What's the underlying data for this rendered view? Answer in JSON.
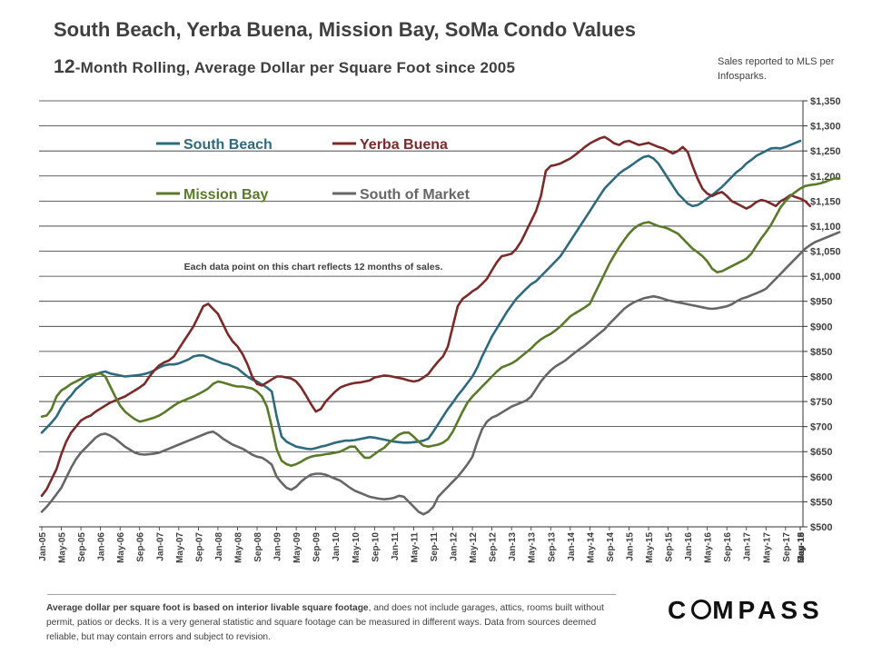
{
  "chart_data": {
    "type": "line",
    "title": "South Beach, Yerba Buena, Mission Bay, SoMa Condo Values",
    "subtitle_prefix": "12",
    "subtitle_rest": "-Month  Rolling,  Average Dollar per Square Foot since 2005",
    "source_note": "Sales reported to MLS per Infosparks.",
    "annotation": "Each data point on this chart reflects 12 months of sales.",
    "ylim": [
      500,
      1350
    ],
    "ytick_step": 50,
    "y_tick_labels": [
      "$500",
      "$550",
      "$600",
      "$650",
      "$700",
      "$750",
      "$800",
      "$850",
      "$900",
      "$950",
      "$1,000",
      "$1,050",
      "$1,100",
      "$1,150",
      "$1,200",
      "$1,250",
      "$1,300",
      "$1,350"
    ],
    "x_tick_labels": [
      "Jan-05",
      "May-05",
      "Sep-05",
      "Jan-06",
      "May-06",
      "Sep-06",
      "Jan-07",
      "May-07",
      "Sep-07",
      "Jan-08",
      "May-08",
      "Sep-08",
      "Jan-09",
      "May-09",
      "Sep-09",
      "Jan-10",
      "May-10",
      "Sep-10",
      "Jan-11",
      "May-11",
      "Sep-11",
      "Jan-12",
      "May-12",
      "Sep-12",
      "Jan-13",
      "May-13",
      "Sep-13",
      "Jan-14",
      "May-14",
      "Sep-14",
      "Jan-15",
      "May-15",
      "Sep-15",
      "Jan-16",
      "May-16",
      "Sep-16",
      "Jan-17",
      "May-17",
      "Sep-17",
      "Jan-18",
      "May-18",
      "Sep-18",
      "Jan-19",
      "May-19"
    ],
    "x_points_per_tick": 4,
    "legend_position": "top-left",
    "series": [
      {
        "name": "South Beach",
        "color": "#2e6a7e",
        "values": [
          688,
          698,
          708,
          720,
          738,
          752,
          762,
          775,
          783,
          792,
          798,
          804,
          808,
          810,
          806,
          804,
          802,
          800,
          801,
          802,
          803,
          805,
          808,
          812,
          818,
          822,
          824,
          824,
          826,
          830,
          834,
          840,
          842,
          842,
          838,
          834,
          830,
          826,
          824,
          820,
          816,
          808,
          800,
          794,
          790,
          784,
          778,
          770,
          720,
          680,
          670,
          665,
          660,
          658,
          656,
          655,
          657,
          660,
          662,
          665,
          668,
          670,
          672,
          672,
          673,
          675,
          677,
          679,
          678,
          676,
          674,
          672,
          670,
          669,
          668,
          668,
          669,
          670,
          672,
          676,
          690,
          705,
          720,
          735,
          748,
          762,
          774,
          787,
          800,
          818,
          840,
          860,
          880,
          896,
          912,
          928,
          942,
          955,
          965,
          975,
          984,
          990,
          1000,
          1010,
          1020,
          1030,
          1040,
          1055,
          1070,
          1085,
          1100,
          1115,
          1130,
          1145,
          1160,
          1175,
          1185,
          1195,
          1205,
          1212,
          1218,
          1225,
          1232,
          1238,
          1240,
          1235,
          1225,
          1210,
          1195,
          1180,
          1165,
          1155,
          1145,
          1140,
          1142,
          1148,
          1155,
          1162,
          1170,
          1178,
          1188,
          1198,
          1208,
          1215,
          1225,
          1232,
          1240,
          1245,
          1250,
          1255,
          1256,
          1255,
          1258,
          1262,
          1266,
          1270
        ]
      },
      {
        "name": "Yerba Buena",
        "color": "#7b2a2a",
        "values": [
          562,
          575,
          595,
          615,
          645,
          670,
          688,
          700,
          712,
          718,
          722,
          730,
          736,
          742,
          748,
          752,
          756,
          760,
          766,
          772,
          778,
          785,
          800,
          812,
          822,
          828,
          832,
          840,
          855,
          870,
          885,
          900,
          920,
          940,
          945,
          935,
          925,
          905,
          885,
          870,
          860,
          845,
          825,
          800,
          785,
          782,
          788,
          794,
          800,
          800,
          798,
          796,
          790,
          778,
          762,
          745,
          730,
          735,
          750,
          760,
          770,
          778,
          782,
          785,
          787,
          788,
          790,
          792,
          798,
          800,
          802,
          801,
          799,
          797,
          795,
          792,
          790,
          792,
          798,
          805,
          818,
          830,
          840,
          860,
          900,
          940,
          955,
          962,
          970,
          976,
          985,
          995,
          1012,
          1028,
          1040,
          1042,
          1045,
          1055,
          1070,
          1090,
          1110,
          1130,
          1160,
          1210,
          1220,
          1222,
          1225,
          1230,
          1235,
          1242,
          1250,
          1258,
          1265,
          1270,
          1275,
          1278,
          1272,
          1265,
          1262,
          1268,
          1270,
          1266,
          1262,
          1264,
          1266,
          1262,
          1258,
          1255,
          1250,
          1245,
          1250,
          1258,
          1248,
          1220,
          1195,
          1175,
          1165,
          1160,
          1165,
          1168,
          1160,
          1150,
          1145,
          1140,
          1135,
          1140,
          1148,
          1152,
          1150,
          1145,
          1140,
          1150,
          1155,
          1162,
          1158,
          1155,
          1150,
          1140
        ]
      },
      {
        "name": "Mission Bay",
        "color": "#5a7a2a",
        "values": [
          720,
          722,
          735,
          760,
          772,
          778,
          785,
          790,
          795,
          800,
          803,
          805,
          806,
          800,
          780,
          760,
          742,
          730,
          722,
          715,
          710,
          712,
          715,
          718,
          722,
          728,
          735,
          742,
          748,
          752,
          756,
          760,
          765,
          770,
          776,
          785,
          790,
          788,
          785,
          782,
          780,
          780,
          778,
          776,
          770,
          760,
          740,
          700,
          655,
          632,
          625,
          622,
          625,
          630,
          636,
          640,
          642,
          643,
          645,
          646,
          648,
          650,
          655,
          660,
          660,
          648,
          638,
          638,
          645,
          652,
          658,
          668,
          676,
          684,
          688,
          688,
          680,
          670,
          662,
          660,
          662,
          664,
          668,
          675,
          690,
          710,
          730,
          748,
          760,
          770,
          780,
          790,
          800,
          810,
          818,
          822,
          826,
          832,
          840,
          848,
          856,
          866,
          874,
          880,
          885,
          892,
          900,
          910,
          920,
          926,
          932,
          938,
          945,
          965,
          985,
          1005,
          1025,
          1042,
          1058,
          1072,
          1085,
          1095,
          1102,
          1106,
          1108,
          1104,
          1100,
          1098,
          1095,
          1090,
          1085,
          1075,
          1065,
          1055,
          1048,
          1040,
          1030,
          1015,
          1008,
          1010,
          1015,
          1020,
          1025,
          1030,
          1035,
          1045,
          1060,
          1075,
          1088,
          1102,
          1120,
          1138,
          1150,
          1160,
          1168,
          1175,
          1180,
          1182,
          1183,
          1185,
          1188,
          1192,
          1195,
          1195
        ]
      },
      {
        "name": "South of Market",
        "color": "#666666",
        "values": [
          530,
          540,
          552,
          565,
          578,
          598,
          618,
          635,
          648,
          658,
          668,
          678,
          684,
          686,
          682,
          676,
          668,
          660,
          654,
          648,
          645,
          644,
          645,
          646,
          648,
          652,
          656,
          660,
          664,
          668,
          672,
          676,
          680,
          684,
          688,
          690,
          684,
          676,
          670,
          664,
          660,
          656,
          650,
          644,
          640,
          638,
          632,
          624,
          600,
          588,
          578,
          574,
          580,
          590,
          598,
          604,
          606,
          606,
          604,
          600,
          596,
          592,
          585,
          578,
          572,
          568,
          564,
          560,
          558,
          556,
          555,
          556,
          558,
          562,
          560,
          550,
          540,
          530,
          525,
          530,
          540,
          560,
          570,
          580,
          590,
          600,
          612,
          625,
          640,
          670,
          695,
          710,
          718,
          722,
          728,
          734,
          740,
          744,
          748,
          752,
          760,
          775,
          790,
          802,
          812,
          820,
          826,
          832,
          840,
          848,
          855,
          862,
          870,
          878,
          886,
          894,
          905,
          915,
          925,
          935,
          942,
          948,
          952,
          956,
          958,
          960,
          958,
          955,
          952,
          950,
          948,
          946,
          944,
          942,
          940,
          938,
          936,
          935,
          936,
          938,
          940,
          944,
          950,
          955,
          958,
          962,
          966,
          970,
          975,
          985,
          995,
          1005,
          1015,
          1025,
          1035,
          1045,
          1055,
          1062,
          1068,
          1072,
          1076,
          1080,
          1084,
          1088
        ]
      }
    ]
  },
  "footnote": {
    "bold": "Average dollar per square foot is based on interior livable square footage",
    "rest": ", and does not include garages, attics, rooms built without permit, patios or decks. It is a very general statistic and square footage can be measured in different ways. Data from sources deemed reliable, but may contain errors and subject to revision."
  },
  "brand": {
    "before": "C",
    "after": "MPASS"
  }
}
